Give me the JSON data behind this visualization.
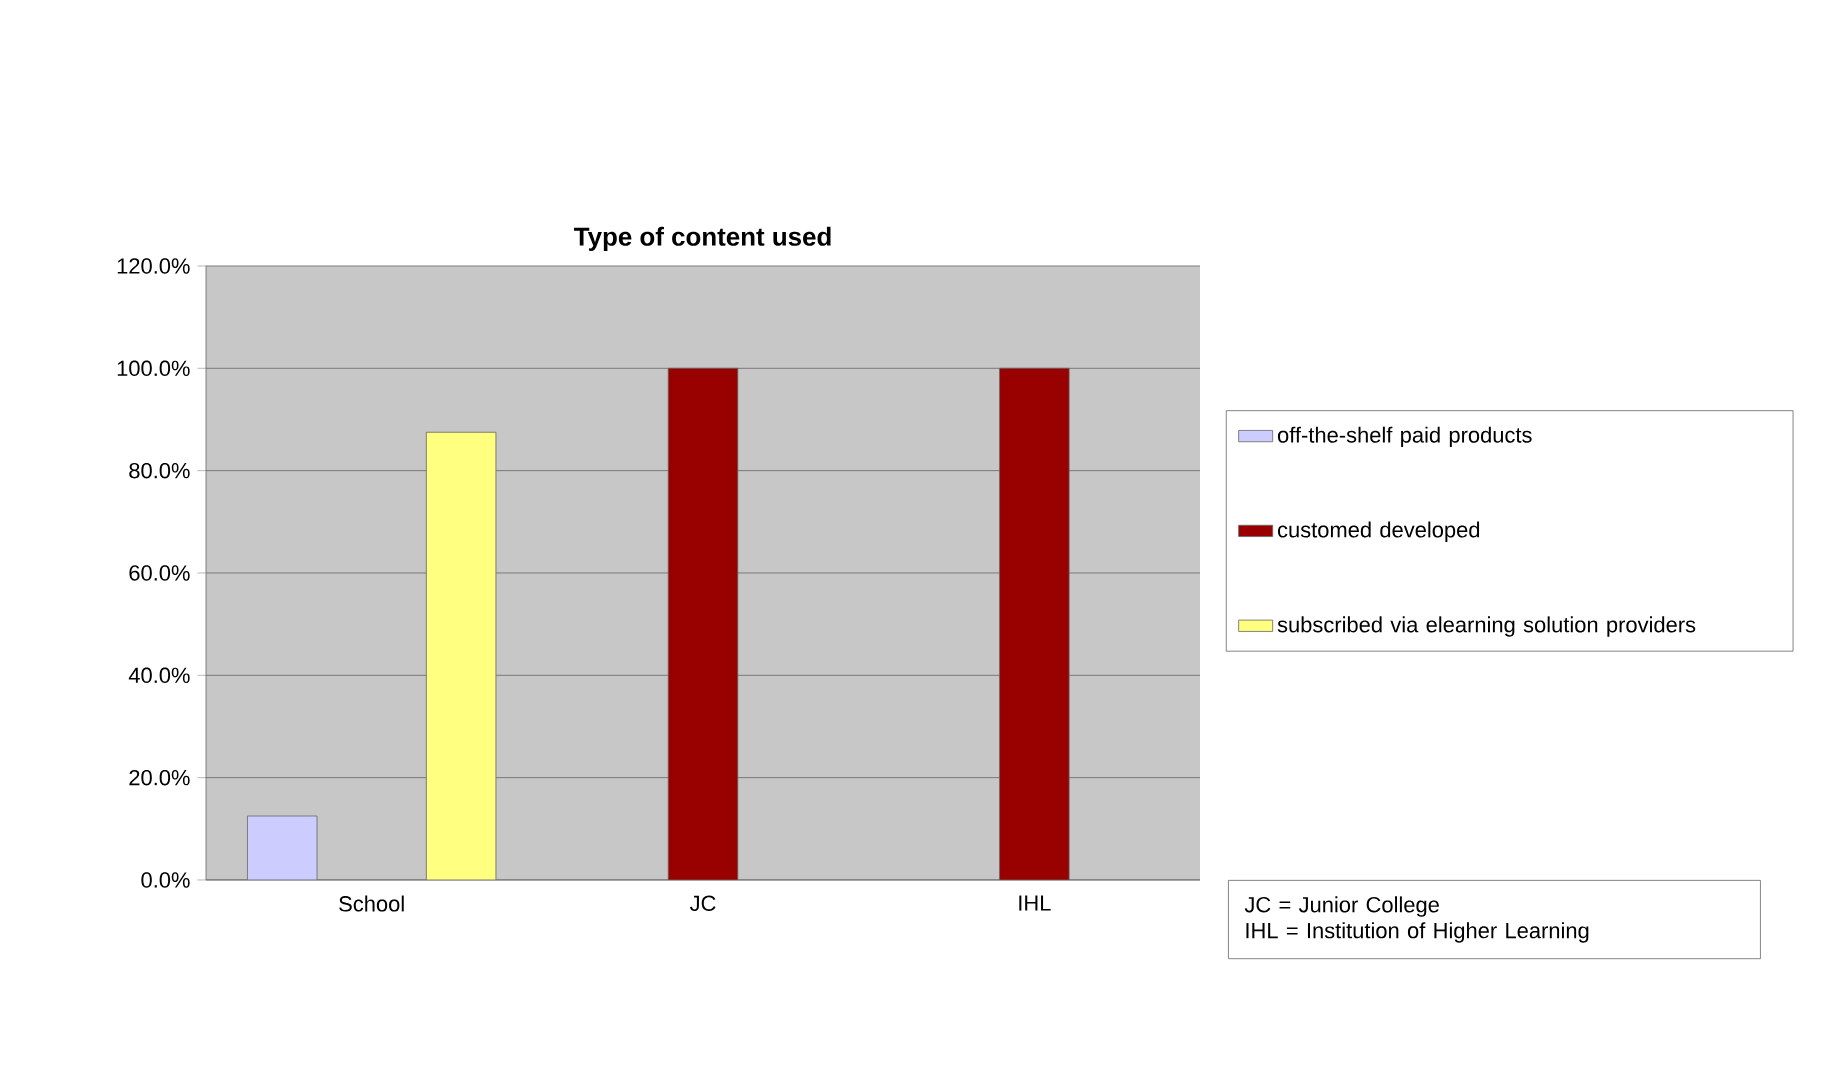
{
  "chart_data": {
    "type": "bar",
    "title": "Type of content used",
    "categories": [
      "School",
      "JC",
      "IHL"
    ],
    "series": [
      {
        "name": "off-the-shelf paid products",
        "color": "#ccccff",
        "values": [
          12.5,
          null,
          null
        ]
      },
      {
        "name": "customed developed",
        "color": "#990000",
        "values": [
          null,
          100,
          100
        ]
      },
      {
        "name": "subscribed via elearning solution providers",
        "color": "#ffff80",
        "values": [
          87.5,
          null,
          null
        ]
      }
    ],
    "ylim": [
      0,
      120
    ],
    "yticks": [
      {
        "value": 0,
        "label": "0.0%"
      },
      {
        "value": 20,
        "label": "20.0%"
      },
      {
        "value": 40,
        "label": "40.0%"
      },
      {
        "value": 60,
        "label": "60.0%"
      },
      {
        "value": 80,
        "label": "80.0%"
      },
      {
        "value": 100,
        "label": "100.0%"
      },
      {
        "value": 120,
        "label": "120.0%"
      }
    ],
    "grid": "y",
    "legend": "right",
    "annotations": [
      "JC = Junior College\nIHL = Institution of Higher Learning"
    ]
  }
}
